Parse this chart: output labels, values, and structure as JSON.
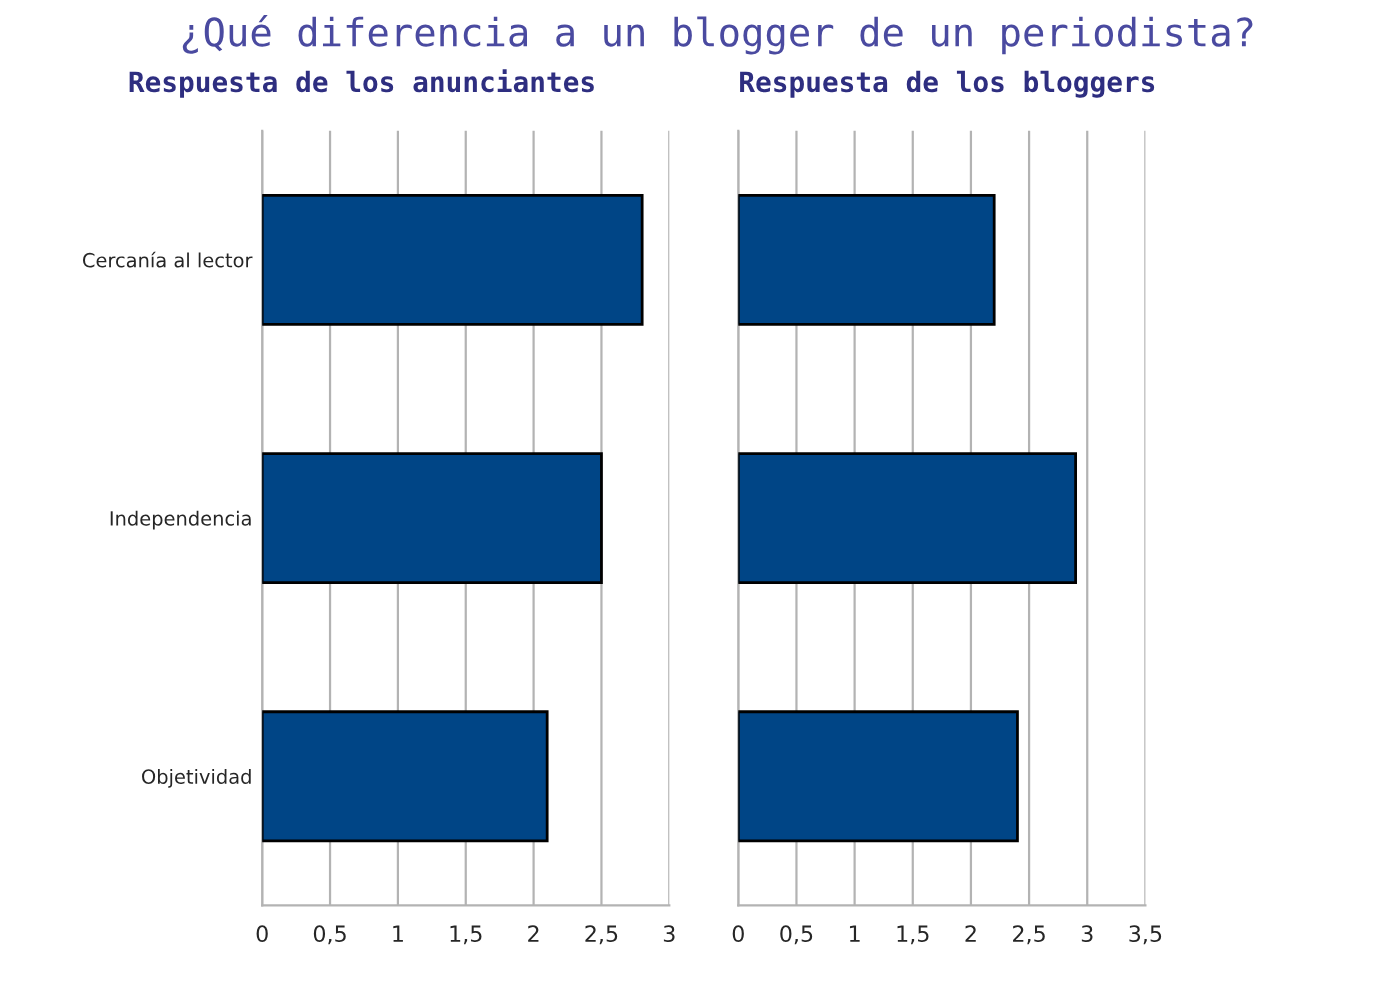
{
  "chart_data": [
    {
      "type": "bar",
      "orientation": "horizontal",
      "title": "¿Qué diferencia a un blogger de un periodista?",
      "subtitle": "Respuesta de los anunciantes",
      "categories": [
        "Cercanía al lector",
        "Independencia",
        "Objetividad"
      ],
      "values": [
        2.8,
        2.5,
        2.1
      ],
      "color": "#004586",
      "xlim": [
        0,
        3
      ],
      "xticks": [
        0,
        {
          "value": 0.5,
          "label": "0,5"
        },
        1,
        {
          "value": 1.5,
          "label": "1,5"
        },
        2,
        {
          "value": 2.5,
          "label": "2,5"
        },
        3
      ],
      "grid": "x"
    },
    {
      "type": "bar",
      "orientation": "horizontal",
      "title": "Respuesta de los bloggers",
      "categories": [
        null,
        null,
        null
      ],
      "values": [
        2.2,
        2.9,
        2.4
      ],
      "color": "#004586",
      "xlim": [
        0,
        3.5
      ],
      "xticks": [
        0,
        {
          "value": 0.5,
          "label": "0,5"
        },
        1,
        {
          "value": 1.5,
          "label": "1,5"
        },
        2,
        {
          "value": 2.5,
          "label": "2,5"
        },
        3,
        {
          "value": 3.5,
          "label": "3,5"
        }
      ],
      "grid": "x"
    }
  ]
}
